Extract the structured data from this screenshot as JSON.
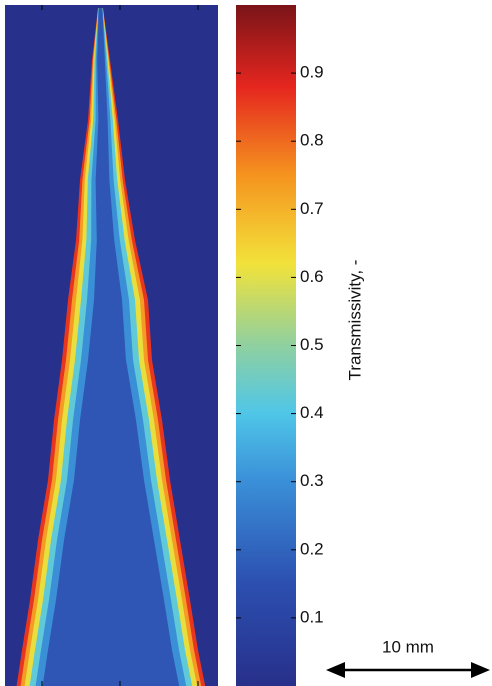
{
  "chart_data": {
    "type": "heatmap",
    "colorbar": {
      "label": "Transmissivity, -",
      "clim": [
        0,
        1
      ],
      "ticks": [
        0.1,
        0.2,
        0.3,
        0.4,
        0.5,
        0.6,
        0.7,
        0.8,
        0.9
      ]
    },
    "scale_bar": "10 mm"
  }
}
